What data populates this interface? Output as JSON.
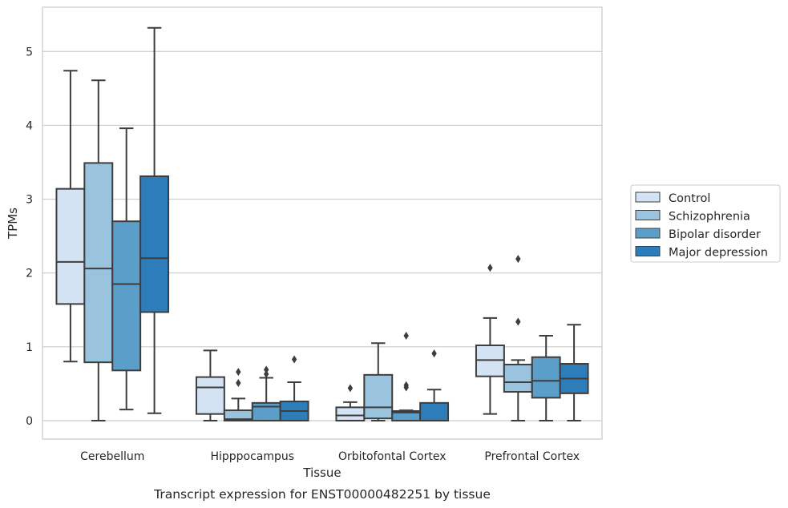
{
  "caption": "Transcript expression for ENST00000482251 by tissue",
  "chart_data": {
    "type": "box",
    "title": "",
    "xlabel": "Tissue",
    "ylabel": "TPMs",
    "ylim": [
      -0.25,
      5.6
    ],
    "yticks": [
      0,
      1,
      2,
      3,
      4,
      5
    ],
    "grid": "horizontal",
    "legend_position": "right",
    "categories": [
      "Cerebellum",
      "Hipppocampus",
      "Orbitofontal Cortex",
      "Prefrontal Cortex"
    ],
    "series": [
      {
        "name": "Control",
        "color": "#d3e3f3",
        "boxes": [
          {
            "whislo": 0.8,
            "q1": 1.58,
            "med": 2.15,
            "q3": 3.14,
            "whishi": 4.74,
            "fliers": []
          },
          {
            "whislo": 0.0,
            "q1": 0.09,
            "med": 0.45,
            "q3": 0.59,
            "whishi": 0.95,
            "fliers": []
          },
          {
            "whislo": 0.0,
            "q1": 0.0,
            "med": 0.07,
            "q3": 0.18,
            "whishi": 0.25,
            "fliers": [
              0.44
            ]
          },
          {
            "whislo": 0.09,
            "q1": 0.6,
            "med": 0.82,
            "q3": 1.02,
            "whishi": 1.39,
            "fliers": [
              2.07
            ]
          }
        ]
      },
      {
        "name": "Schizophrenia",
        "color": "#9ac3dd",
        "boxes": [
          {
            "whislo": 0.0,
            "q1": 0.79,
            "med": 2.06,
            "q3": 3.49,
            "whishi": 4.61,
            "fliers": []
          },
          {
            "whislo": 0.0,
            "q1": 0.0,
            "med": 0.02,
            "q3": 0.14,
            "whishi": 0.3,
            "fliers": [
              0.51,
              0.66
            ]
          },
          {
            "whislo": 0.0,
            "q1": 0.03,
            "med": 0.18,
            "q3": 0.62,
            "whishi": 1.05,
            "fliers": []
          },
          {
            "whislo": 0.0,
            "q1": 0.39,
            "med": 0.52,
            "q3": 0.76,
            "whishi": 0.82,
            "fliers": [
              1.34,
              2.19
            ]
          }
        ]
      },
      {
        "name": "Bipolar disorder",
        "color": "#5b9ec9",
        "boxes": [
          {
            "whislo": 0.15,
            "q1": 0.68,
            "med": 1.85,
            "q3": 2.7,
            "whishi": 3.96,
            "fliers": []
          },
          {
            "whislo": 0.0,
            "q1": 0.0,
            "med": 0.19,
            "q3": 0.24,
            "whishi": 0.58,
            "fliers": [
              0.63,
              0.69
            ]
          },
          {
            "whislo": 0.0,
            "q1": 0.0,
            "med": 0.11,
            "q3": 0.13,
            "whishi": 0.14,
            "fliers": [
              0.45,
              0.48,
              1.15
            ]
          },
          {
            "whislo": 0.0,
            "q1": 0.31,
            "med": 0.54,
            "q3": 0.86,
            "whishi": 1.15,
            "fliers": []
          }
        ]
      },
      {
        "name": "Major depression",
        "color": "#2d7dbb",
        "boxes": [
          {
            "whislo": 0.1,
            "q1": 1.47,
            "med": 2.2,
            "q3": 3.31,
            "whishi": 5.32,
            "fliers": []
          },
          {
            "whislo": 0.0,
            "q1": 0.0,
            "med": 0.13,
            "q3": 0.26,
            "whishi": 0.52,
            "fliers": [
              0.83
            ]
          },
          {
            "whislo": 0.0,
            "q1": 0.0,
            "med": 0.0,
            "q3": 0.24,
            "whishi": 0.42,
            "fliers": [
              0.91
            ]
          },
          {
            "whislo": 0.0,
            "q1": 0.37,
            "med": 0.57,
            "q3": 0.77,
            "whishi": 1.3,
            "fliers": []
          }
        ]
      }
    ]
  }
}
